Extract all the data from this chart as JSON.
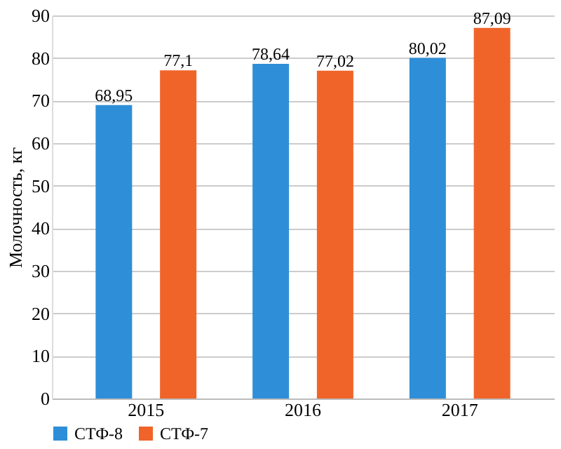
{
  "chart_data": {
    "type": "bar",
    "ylabel": "Молочность, кг",
    "categories": [
      "2015",
      "2016",
      "2017"
    ],
    "series": [
      {
        "name": "СТФ-8",
        "color": "#2e8fd8",
        "values": [
          68.95,
          78.64,
          80.02
        ],
        "value_labels": [
          "68,95",
          "78,64",
          "80,02"
        ]
      },
      {
        "name": "СТФ-7",
        "color": "#f0642a",
        "values": [
          77.1,
          77.02,
          87.09
        ],
        "value_labels": [
          "77,1",
          "77,02",
          "87,09"
        ]
      }
    ],
    "ylim": [
      0,
      90
    ],
    "yticks": [
      0,
      10,
      20,
      30,
      40,
      50,
      60,
      70,
      80,
      90
    ],
    "grid": "y",
    "legend": "bottom"
  }
}
